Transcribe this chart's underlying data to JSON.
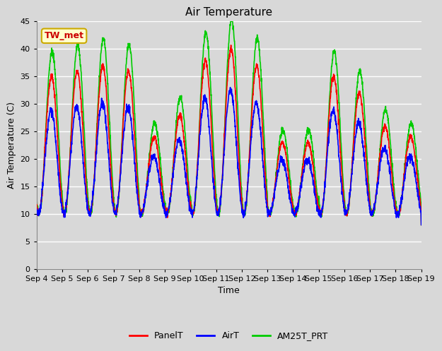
{
  "title": "Air Temperature",
  "ylabel": "Air Temperature (C)",
  "xlabel": "Time",
  "annotation_text": "TW_met",
  "annotation_bg": "#ffffcc",
  "annotation_border": "#ccaa00",
  "annotation_text_color": "#cc0000",
  "ylim": [
    0,
    45
  ],
  "yticks": [
    0,
    5,
    10,
    15,
    20,
    25,
    30,
    35,
    40,
    45
  ],
  "bg_color": "#d8d8d8",
  "plot_bg_color": "#d8d8d8",
  "line_colors": {
    "PanelT": "#ff0000",
    "AirT": "#0000ff",
    "AM25T_PRT": "#00cc00"
  },
  "line_widths": {
    "PanelT": 1.2,
    "AirT": 1.2,
    "AM25T_PRT": 1.2
  },
  "legend_labels": [
    "PanelT",
    "AirT",
    "AM25T_PRT"
  ],
  "title_fontsize": 11,
  "label_fontsize": 9,
  "tick_fontsize": 8,
  "grid_color": "#ffffff",
  "grid_alpha": 1.0,
  "n_days": 15,
  "x_tick_labels": [
    "Sep 4",
    "Sep 5",
    "Sep 6",
    "Sep 7",
    "Sep 8",
    "Sep 9",
    "Sep 10",
    "Sep 11",
    "Sep 12",
    "Sep 13",
    "Sep 14",
    "Sep 15",
    "Sep 16",
    "Sep 17",
    "Sep 18",
    "Sep 19"
  ],
  "day_amplitudes": [
    25,
    26,
    27,
    26,
    14,
    18,
    28,
    30,
    27,
    13,
    13,
    25,
    22,
    16,
    14
  ],
  "base_min": 10,
  "panel_scale": 1.0,
  "air_scale": 0.75,
  "am25_scale": 1.18
}
